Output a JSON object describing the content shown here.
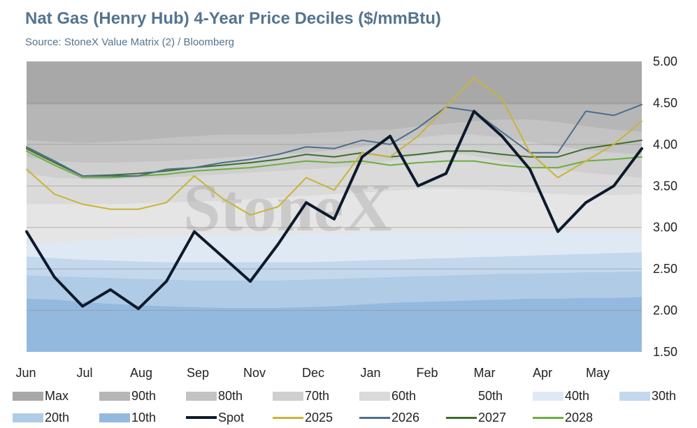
{
  "title": "Nat Gas (Henry Hub) 4-Year Price Deciles ($/mmBtu)",
  "subtitle": "Source: StoneX Value Matrix (2) / Bloomberg",
  "watermark": "StoneX",
  "chart_data": {
    "type": "area",
    "title": "Nat Gas (Henry Hub) 4-Year Price Deciles ($/mmBtu)",
    "y_axis_side": "right",
    "ylim": [
      1.5,
      5.0
    ],
    "yticks": [
      "1.50",
      "2.00",
      "2.50",
      "3.00",
      "3.50",
      "4.00",
      "4.50",
      "5.00"
    ],
    "xticks": [
      "Jun",
      "Jul",
      "Aug",
      "Sep",
      "Nov",
      "Dec",
      "Jan",
      "Feb",
      "Mar",
      "Apr",
      "May"
    ],
    "grid": true,
    "legend_position": "bottom",
    "x": [
      0,
      0.5,
      1,
      1.5,
      2,
      2.5,
      3,
      3.5,
      4,
      4.5,
      5,
      5.5,
      6,
      6.5,
      7,
      7.5,
      8,
      8.5,
      9,
      9.5,
      10,
      10.5,
      11
    ],
    "bands": [
      {
        "name": "Max",
        "color": "#a8a8a8",
        "values": [
          5.0,
          5.0,
          5.0,
          5.0,
          5.0,
          5.0,
          5.0,
          5.0,
          5.0,
          5.0,
          5.0,
          5.0,
          5.0,
          5.0,
          5.0,
          5.0,
          5.0,
          5.0,
          5.0,
          5.0,
          5.0,
          5.0,
          5.0
        ]
      },
      {
        "name": "90th",
        "color": "#b6b6b6",
        "values": [
          4.48,
          4.48,
          4.48,
          4.48,
          4.48,
          4.48,
          4.48,
          4.48,
          4.48,
          4.48,
          4.48,
          4.48,
          4.48,
          4.48,
          4.48,
          4.48,
          4.48,
          4.48,
          4.48,
          4.48,
          4.48,
          4.48,
          4.48
        ]
      },
      {
        "name": "80th",
        "color": "#c3c3c3",
        "values": [
          4.05,
          4.03,
          4.02,
          4.03,
          4.05,
          4.08,
          4.1,
          4.12,
          4.12,
          4.12,
          4.13,
          4.15,
          4.17,
          4.18,
          4.22,
          4.25,
          4.28,
          4.3,
          4.3,
          4.27,
          4.22,
          4.18,
          4.15
        ]
      },
      {
        "name": "70th",
        "color": "#cfcfcf",
        "values": [
          3.85,
          3.8,
          3.78,
          3.78,
          3.79,
          3.8,
          3.82,
          3.84,
          3.86,
          3.88,
          3.9,
          3.93,
          3.97,
          4.02,
          4.08,
          4.12,
          4.12,
          4.08,
          4.03,
          3.98,
          3.93,
          3.9,
          3.88
        ]
      },
      {
        "name": "60th",
        "color": "#dadada",
        "values": [
          3.65,
          3.6,
          3.58,
          3.58,
          3.59,
          3.6,
          3.62,
          3.64,
          3.66,
          3.68,
          3.7,
          3.72,
          3.75,
          3.8,
          3.86,
          3.9,
          3.86,
          3.8,
          3.74,
          3.7,
          3.66,
          3.63,
          3.6
        ]
      },
      {
        "name": "50th",
        "color": "#e5e5e5",
        "values": [
          3.28,
          3.28,
          3.28,
          3.28,
          3.29,
          3.3,
          3.31,
          3.32,
          3.34,
          3.36,
          3.38,
          3.4,
          3.42,
          3.44,
          3.46,
          3.47,
          3.46,
          3.44,
          3.42,
          3.4,
          3.39,
          3.39,
          3.4
        ]
      },
      {
        "name": "40th",
        "color": "#dfe9f4",
        "values": [
          2.8,
          2.82,
          2.84,
          2.86,
          2.87,
          2.88,
          2.89,
          2.9,
          2.9,
          2.91,
          2.92,
          2.92,
          2.93,
          2.93,
          2.94,
          2.94,
          2.95,
          2.95,
          2.95,
          2.95,
          2.95,
          2.95,
          2.95
        ]
      },
      {
        "name": "30th",
        "color": "#c3d8ec",
        "values": [
          2.65,
          2.63,
          2.61,
          2.6,
          2.59,
          2.58,
          2.58,
          2.58,
          2.58,
          2.58,
          2.58,
          2.59,
          2.6,
          2.61,
          2.62,
          2.63,
          2.64,
          2.65,
          2.66,
          2.67,
          2.68,
          2.69,
          2.7
        ]
      },
      {
        "name": "20th",
        "color": "#afcbe6",
        "values": [
          2.42,
          2.41,
          2.4,
          2.39,
          2.38,
          2.37,
          2.36,
          2.36,
          2.36,
          2.36,
          2.37,
          2.38,
          2.39,
          2.4,
          2.41,
          2.42,
          2.43,
          2.44,
          2.44,
          2.45,
          2.46,
          2.46,
          2.47
        ]
      },
      {
        "name": "10th",
        "color": "#94b9de",
        "values": [
          2.14,
          2.13,
          2.1,
          2.08,
          2.06,
          2.05,
          2.04,
          2.03,
          2.03,
          2.03,
          2.04,
          2.05,
          2.07,
          2.09,
          2.1,
          2.11,
          2.12,
          2.13,
          2.14,
          2.14,
          2.15,
          2.15,
          2.16
        ]
      }
    ],
    "series": [
      {
        "name": "2025",
        "color": "#c9b437",
        "width": 2,
        "values": [
          3.7,
          3.4,
          3.28,
          3.22,
          3.22,
          3.3,
          3.62,
          3.35,
          3.15,
          3.25,
          3.6,
          3.45,
          3.9,
          3.85,
          4.1,
          4.45,
          4.8,
          4.55,
          3.9,
          3.6,
          3.8,
          4.0,
          4.28
        ]
      },
      {
        "name": "2026",
        "color": "#4b6e8e",
        "width": 2,
        "values": [
          3.97,
          3.8,
          3.62,
          3.62,
          3.62,
          3.7,
          3.72,
          3.78,
          3.82,
          3.88,
          3.97,
          3.95,
          4.05,
          4.0,
          4.2,
          4.45,
          4.4,
          4.15,
          3.9,
          3.9,
          4.4,
          4.35,
          4.48
        ]
      },
      {
        "name": "2027",
        "color": "#3f6e2b",
        "width": 2,
        "values": [
          3.95,
          3.78,
          3.62,
          3.63,
          3.65,
          3.68,
          3.72,
          3.75,
          3.78,
          3.82,
          3.88,
          3.85,
          3.9,
          3.85,
          3.88,
          3.92,
          3.92,
          3.88,
          3.85,
          3.85,
          3.95,
          4.0,
          4.05
        ]
      },
      {
        "name": "2028",
        "color": "#6cae3e",
        "width": 2,
        "values": [
          3.92,
          3.75,
          3.6,
          3.6,
          3.62,
          3.64,
          3.68,
          3.7,
          3.72,
          3.76,
          3.8,
          3.78,
          3.8,
          3.75,
          3.78,
          3.8,
          3.8,
          3.75,
          3.72,
          3.72,
          3.8,
          3.82,
          3.85
        ]
      },
      {
        "name": "Spot",
        "color": "#0d1a2b",
        "width": 4,
        "values": [
          2.95,
          2.4,
          2.05,
          2.25,
          2.02,
          2.35,
          2.95,
          2.65,
          2.35,
          2.8,
          3.3,
          3.1,
          3.85,
          4.1,
          3.5,
          3.65,
          4.4,
          4.1,
          3.7,
          2.95,
          3.3,
          3.5,
          3.95
        ]
      }
    ]
  },
  "legend": [
    {
      "label": "Max",
      "kind": "band",
      "color": "#a8a8a8"
    },
    {
      "label": "90th",
      "kind": "band",
      "color": "#b6b6b6"
    },
    {
      "label": "80th",
      "kind": "band",
      "color": "#c3c3c3"
    },
    {
      "label": "70th",
      "kind": "band",
      "color": "#cfcfcf"
    },
    {
      "label": "60th",
      "kind": "band",
      "color": "#dadada"
    },
    {
      "label": "50th",
      "kind": "band",
      "color": "#ffffff"
    },
    {
      "label": "40th",
      "kind": "band",
      "color": "#dfe9f4"
    },
    {
      "label": "30th",
      "kind": "band",
      "color": "#c3d8ec"
    },
    {
      "label": "20th",
      "kind": "band",
      "color": "#afcbe6"
    },
    {
      "label": "10th",
      "kind": "band",
      "color": "#94b9de"
    },
    {
      "label": "Spot",
      "kind": "line",
      "color": "#0d1a2b"
    },
    {
      "label": "2025",
      "kind": "line",
      "color": "#c9b437"
    },
    {
      "label": "2026",
      "kind": "line",
      "color": "#4b6e8e"
    },
    {
      "label": "2027",
      "kind": "line",
      "color": "#3f6e2b"
    },
    {
      "label": "2028",
      "kind": "line",
      "color": "#6cae3e"
    }
  ]
}
